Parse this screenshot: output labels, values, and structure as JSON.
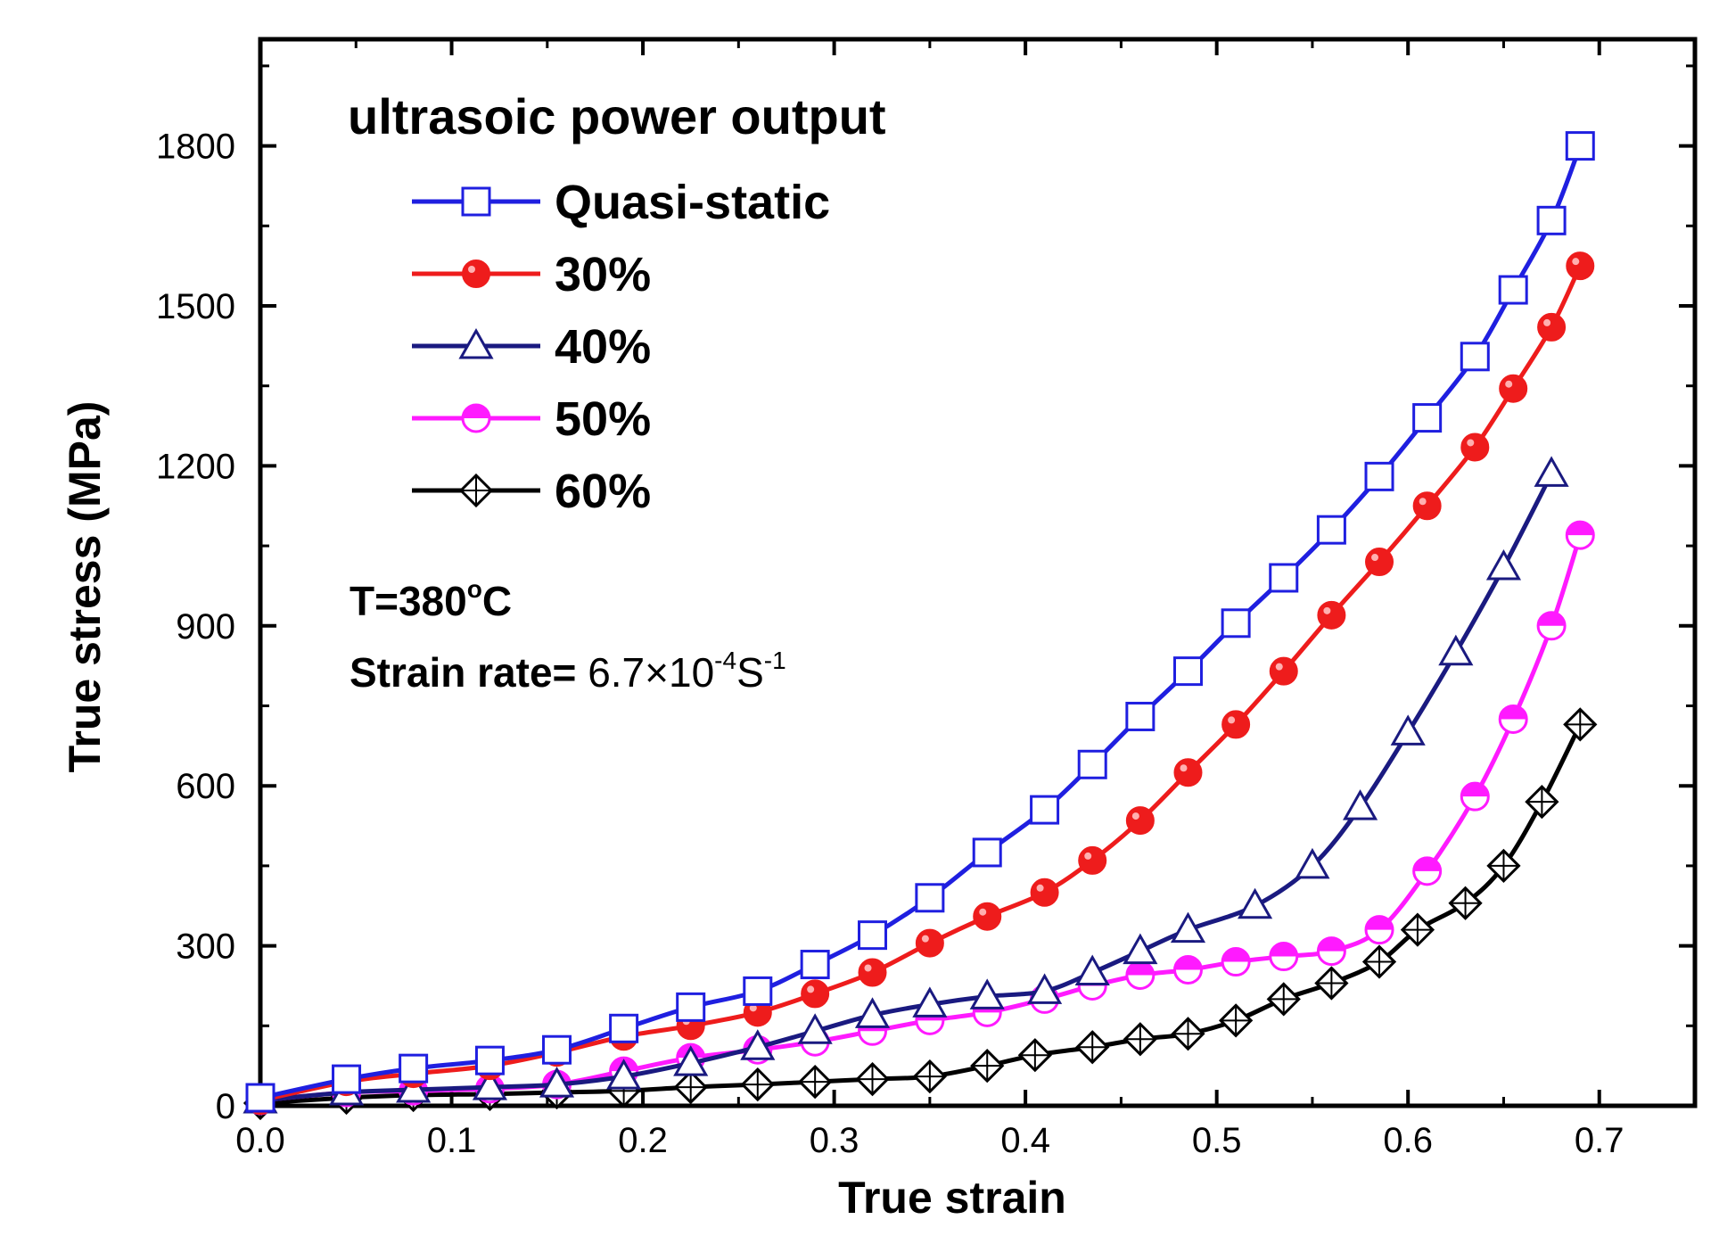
{
  "chart_data": {
    "type": "line",
    "xlabel": "True strain",
    "ylabel": "True stress (MPa)",
    "xlim": [
      0.0,
      0.75
    ],
    "ylim": [
      0,
      2000
    ],
    "xticks": [
      0.0,
      0.1,
      0.2,
      0.3,
      0.4,
      0.5,
      0.6,
      0.7
    ],
    "xtick_labels": [
      "0.0",
      "0.1",
      "0.2",
      "0.3",
      "0.4",
      "0.5",
      "0.6",
      "0.7"
    ],
    "yticks": [
      0,
      300,
      600,
      900,
      1200,
      1500,
      1800
    ],
    "ytick_labels": [
      "0",
      "300",
      "600",
      "900",
      "1200",
      "1500",
      "1800"
    ],
    "legend_title": "ultrasoic power output",
    "legend_position": "top-left",
    "annotations": {
      "temperature": {
        "prefix": "T=380",
        "sup": "o",
        "suffix": "C"
      },
      "strain_rate": {
        "prefix": "Strain rate= ",
        "value": "6.7×10",
        "exp1": "-4",
        "mid": "S",
        "exp2": "-1"
      }
    },
    "series": [
      {
        "name": "Quasi-static",
        "color": "#1f1fe0",
        "marker": "open-square",
        "x": [
          0.0,
          0.045,
          0.08,
          0.12,
          0.155,
          0.19,
          0.225,
          0.26,
          0.29,
          0.32,
          0.35,
          0.38,
          0.41,
          0.435,
          0.46,
          0.485,
          0.51,
          0.535,
          0.56,
          0.585,
          0.61,
          0.635,
          0.655,
          0.675,
          0.69
        ],
        "y": [
          15,
          50,
          70,
          85,
          105,
          145,
          185,
          215,
          265,
          320,
          390,
          475,
          555,
          640,
          730,
          815,
          905,
          990,
          1080,
          1180,
          1290,
          1405,
          1530,
          1660,
          1800
        ]
      },
      {
        "name": "30%",
        "color": "#ee1c1c",
        "marker": "filled-circle",
        "x": [
          0.0,
          0.045,
          0.08,
          0.12,
          0.155,
          0.19,
          0.225,
          0.26,
          0.29,
          0.32,
          0.35,
          0.38,
          0.41,
          0.435,
          0.46,
          0.485,
          0.51,
          0.535,
          0.56,
          0.585,
          0.61,
          0.635,
          0.655,
          0.675,
          0.69
        ],
        "y": [
          10,
          45,
          60,
          75,
          100,
          130,
          150,
          175,
          210,
          250,
          305,
          355,
          400,
          460,
          535,
          625,
          715,
          815,
          920,
          1020,
          1125,
          1235,
          1345,
          1460,
          1575
        ]
      },
      {
        "name": "40%",
        "color": "#1a1a80",
        "marker": "open-triangle",
        "x": [
          0.0,
          0.045,
          0.08,
          0.12,
          0.155,
          0.19,
          0.225,
          0.26,
          0.29,
          0.32,
          0.35,
          0.38,
          0.41,
          0.435,
          0.46,
          0.485,
          0.52,
          0.55,
          0.575,
          0.6,
          0.625,
          0.65,
          0.675
        ],
        "y": [
          10,
          25,
          30,
          35,
          40,
          55,
          80,
          110,
          140,
          170,
          190,
          205,
          215,
          250,
          290,
          330,
          375,
          450,
          560,
          700,
          850,
          1010,
          1185
        ]
      },
      {
        "name": "50%",
        "color": "#ff1aff",
        "marker": "half-filled-circle",
        "x": [
          0.0,
          0.045,
          0.08,
          0.12,
          0.155,
          0.19,
          0.225,
          0.26,
          0.29,
          0.32,
          0.35,
          0.38,
          0.41,
          0.435,
          0.46,
          0.485,
          0.51,
          0.535,
          0.56,
          0.585,
          0.61,
          0.635,
          0.655,
          0.675,
          0.69
        ],
        "y": [
          10,
          25,
          28,
          32,
          40,
          65,
          90,
          105,
          120,
          140,
          160,
          175,
          200,
          225,
          245,
          255,
          270,
          280,
          290,
          330,
          440,
          580,
          725,
          900,
          1070
        ]
      },
      {
        "name": "60%",
        "color": "#000000",
        "marker": "crossed-diamond",
        "x": [
          0.0,
          0.045,
          0.08,
          0.12,
          0.155,
          0.19,
          0.225,
          0.26,
          0.29,
          0.32,
          0.35,
          0.38,
          0.405,
          0.435,
          0.46,
          0.485,
          0.51,
          0.535,
          0.56,
          0.585,
          0.605,
          0.63,
          0.65,
          0.67,
          0.69
        ],
        "y": [
          5,
          15,
          20,
          22,
          25,
          28,
          35,
          40,
          45,
          50,
          55,
          75,
          95,
          110,
          125,
          135,
          160,
          200,
          230,
          270,
          330,
          380,
          450,
          570,
          715
        ]
      }
    ]
  }
}
